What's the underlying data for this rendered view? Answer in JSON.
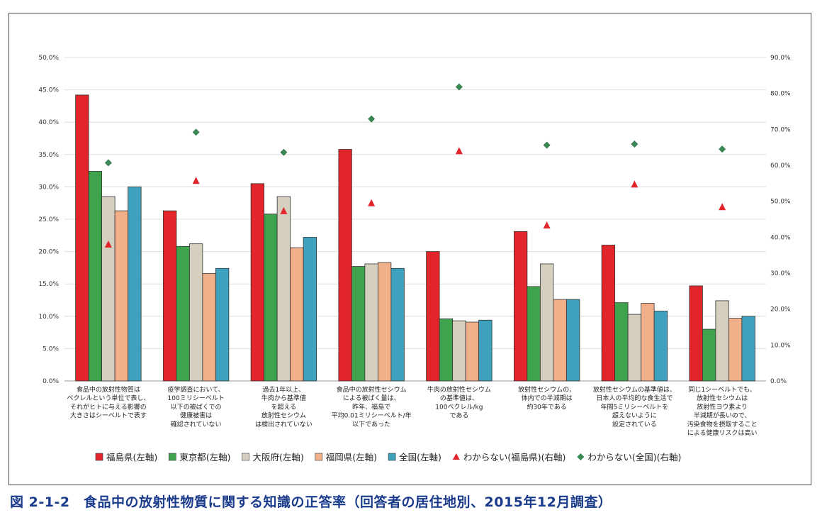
{
  "caption": "図 2-1-2　食品中の放射性物質に関する知識の正答率（回答者の居住地別、2015年12月調査）",
  "chart_data": {
    "type": "bar",
    "left_axis": {
      "min": 0,
      "max": 50,
      "step": 5,
      "ticks": [
        "0.0%",
        "5.0%",
        "10.0%",
        "15.0%",
        "20.0%",
        "25.0%",
        "30.0%",
        "35.0%",
        "40.0%",
        "45.0%",
        "50.0%"
      ]
    },
    "right_axis": {
      "min": 0,
      "max": 90,
      "step": 10,
      "ticks": [
        "0.0%",
        "10.0%",
        "20.0%",
        "30.0%",
        "40.0%",
        "50.0%",
        "60.0%",
        "70.0%",
        "80.0%",
        "90.0%"
      ]
    },
    "categories": [
      [
        "食品中の放射性物質は",
        "ベクレルという単位で表し、",
        "それがヒトに与える影響の",
        "大きさはシーベルトで表す"
      ],
      [
        "疫学調査において、",
        "100ミリシーベルト",
        "以下の被ばくでの",
        "健康被害は",
        "確認されていない"
      ],
      [
        "過去1年以上、",
        "牛肉から基準値",
        "を超える",
        "放射性セシウム",
        "は検出されていない"
      ],
      [
        "食品中の放射性セシウム",
        "による被ばく量は、",
        "昨年、福島で",
        "平均0.01ミリシーベルト/年",
        "以下であった"
      ],
      [
        "牛肉の放射性セシウム",
        "の基準値は、",
        "100ベクレル/kg",
        "である"
      ],
      [
        "放射性セシウムの、",
        "体内での半減期は",
        "約30年である"
      ],
      [
        "放射性セシウムの基準値は、",
        "日本人の平均的な食生活で",
        "年間5ミリシーベルトを",
        "超えないように",
        "設定されている"
      ],
      [
        "同じ1シーベルトでも、",
        "放射性セシウムは",
        "放射性ヨウ素より",
        "半減期が長いので、",
        "汚染食物を摂取すること",
        "による健康リスクは高い"
      ]
    ],
    "series": [
      {
        "name": "福島県(左軸)",
        "axis": "left",
        "kind": "bar",
        "color": "#e2252b",
        "values": [
          44.2,
          26.3,
          30.5,
          35.8,
          20.0,
          23.1,
          21.0,
          14.7
        ]
      },
      {
        "name": "東京都(左軸)",
        "axis": "left",
        "kind": "bar",
        "color": "#3fa34d",
        "values": [
          32.4,
          20.8,
          25.8,
          17.7,
          9.6,
          14.6,
          12.1,
          8.0
        ]
      },
      {
        "name": "大阪府(左軸)",
        "axis": "left",
        "kind": "bar",
        "color": "#d5cfbf",
        "values": [
          28.5,
          21.2,
          28.5,
          18.1,
          9.3,
          18.1,
          10.3,
          12.4
        ]
      },
      {
        "name": "福岡県(左軸)",
        "axis": "left",
        "kind": "bar",
        "color": "#f2b08a",
        "values": [
          26.3,
          16.6,
          20.6,
          18.3,
          9.1,
          12.6,
          12.0,
          9.7
        ]
      },
      {
        "name": "全国(左軸)",
        "axis": "left",
        "kind": "bar",
        "color": "#3ea1be",
        "values": [
          30.0,
          17.4,
          22.2,
          17.4,
          9.4,
          12.6,
          10.8,
          10.0
        ]
      },
      {
        "name": "わからない(福島県)(右軸)",
        "axis": "right",
        "kind": "triangle",
        "color": "#e2252b",
        "values": [
          38.0,
          55.7,
          47.3,
          49.5,
          64.0,
          43.3,
          54.7,
          48.4
        ]
      },
      {
        "name": "わからない(全国)(右軸)",
        "axis": "right",
        "kind": "diamond",
        "color": "#3a8a55",
        "values": [
          60.7,
          69.2,
          63.6,
          72.9,
          81.8,
          65.6,
          65.9,
          64.5
        ]
      }
    ],
    "legend": [
      {
        "label": "福島県(左軸)",
        "shape": "square",
        "color": "#e2252b"
      },
      {
        "label": "東京都(左軸)",
        "shape": "square",
        "color": "#3fa34d"
      },
      {
        "label": "大阪府(左軸)",
        "shape": "square",
        "color": "#d5cfbf"
      },
      {
        "label": "福岡県(左軸)",
        "shape": "square",
        "color": "#f2b08a"
      },
      {
        "label": "全国(左軸)",
        "shape": "square",
        "color": "#3ea1be"
      },
      {
        "label": "わからない(福島県)(右軸)",
        "shape": "triangle",
        "color": "#e2252b"
      },
      {
        "label": "わからない(全国)(右軸)",
        "shape": "diamond",
        "color": "#3a8a55"
      }
    ],
    "legend_position": "bottom",
    "grid": true
  }
}
